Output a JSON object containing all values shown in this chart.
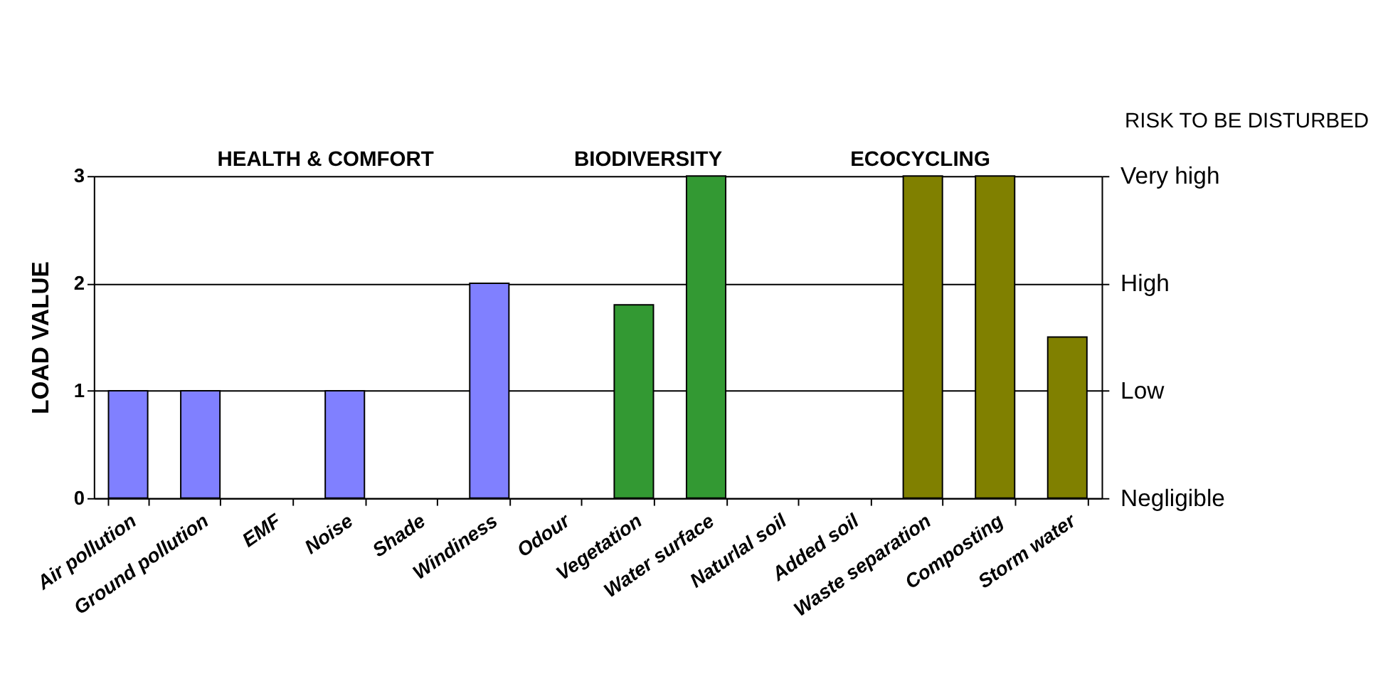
{
  "chart_data": {
    "type": "bar",
    "ylabel": "LOAD VALUE",
    "y2label": "RISK TO BE DISTURBED",
    "categories": [
      "Air pollution",
      "Ground pollution",
      "EMF",
      "Noise",
      "Shade",
      "Windiness",
      "Odour",
      "Vegetation",
      "Water surface",
      "Naturlal soil",
      "Added soil",
      "Waste separation",
      "Composting",
      "Storm water"
    ],
    "values": [
      1,
      1,
      0,
      1,
      0,
      2,
      0,
      1.8,
      3,
      0,
      0,
      3,
      3,
      1.5
    ],
    "colors": [
      "#8080ff",
      "#8080ff",
      "#8080ff",
      "#8080ff",
      "#8080ff",
      "#8080ff",
      "#8080ff",
      "#339933",
      "#339933",
      "#339933",
      "#339933",
      "#808000",
      "#808000",
      "#808000"
    ],
    "ylim": [
      0,
      3
    ],
    "yticks": [
      0,
      1,
      2,
      3
    ],
    "grid": "y",
    "annotations": [
      "HEALTH & COMFORT",
      "BIODIVERSITY",
      "ECOCYCLING",
      "Negligible",
      "Low",
      "High",
      "Very high"
    ]
  }
}
